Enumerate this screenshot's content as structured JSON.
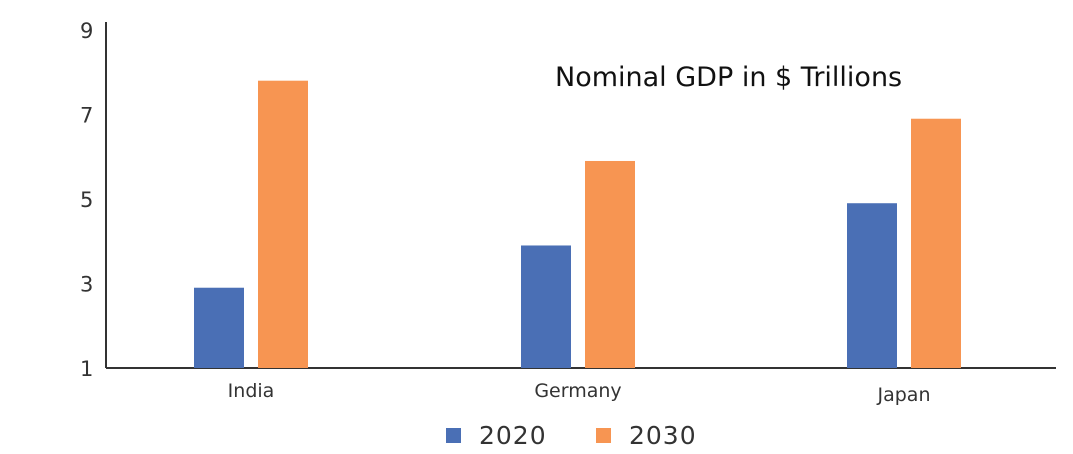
{
  "chart_data": {
    "type": "bar",
    "title": "Nominal GDP in $ Trillions",
    "categories": [
      "India",
      "Germany",
      "Japan"
    ],
    "series": [
      {
        "name": "2020",
        "values": [
          2.9,
          3.9,
          4.9
        ],
        "color": "#4a6fb5"
      },
      {
        "name": "2030",
        "values": [
          7.8,
          5.9,
          6.9
        ],
        "color": "#f79552"
      }
    ],
    "y_ticks": [
      1,
      3,
      5,
      7,
      9
    ],
    "ylim": [
      1,
      9
    ],
    "xlabel": "",
    "ylabel": "",
    "grid": false,
    "legend_position": "bottom-center"
  }
}
